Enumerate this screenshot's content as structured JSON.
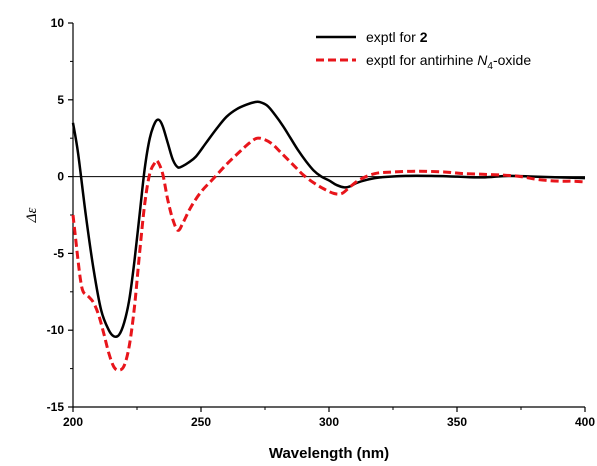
{
  "chart_data": {
    "type": "line",
    "title": "",
    "xlabel": "Wavelength (nm)",
    "ylabel": "Δε",
    "xlim": [
      200,
      400
    ],
    "ylim": [
      -15,
      10
    ],
    "xticks": [
      200,
      250,
      300,
      350,
      400
    ],
    "yticks": [
      -15,
      -10,
      -5,
      0,
      5,
      10
    ],
    "legend": "top-right",
    "zero_line": true,
    "series": [
      {
        "name_parts": [
          "exptl for ",
          "2"
        ],
        "color": "#000000",
        "style": "solid",
        "x": [
          200,
          202,
          205,
          208,
          211,
          214,
          216,
          218,
          220,
          222,
          224,
          226,
          228,
          230,
          232,
          233.5,
          235,
          237,
          239,
          241,
          243,
          245,
          248,
          252,
          256,
          260,
          264,
          268,
          271,
          273,
          276,
          279,
          282,
          285,
          288,
          291,
          294,
          297,
          300,
          303,
          306,
          308,
          311,
          315,
          320,
          330,
          340,
          350,
          360,
          370,
          380,
          390,
          400
        ],
        "y": [
          3.5,
          1.5,
          -2.5,
          -6.0,
          -8.7,
          -10.0,
          -10.4,
          -10.3,
          -9.5,
          -8.0,
          -5.5,
          -2.5,
          0.5,
          2.5,
          3.5,
          3.7,
          3.3,
          2.2,
          1.1,
          0.6,
          0.7,
          0.9,
          1.3,
          2.2,
          3.1,
          3.9,
          4.4,
          4.7,
          4.85,
          4.85,
          4.6,
          4.0,
          3.3,
          2.5,
          1.7,
          1.0,
          0.4,
          0.0,
          -0.25,
          -0.55,
          -0.7,
          -0.65,
          -0.4,
          -0.2,
          -0.05,
          0.05,
          0.05,
          0.0,
          -0.05,
          0.05,
          0.0,
          -0.05,
          -0.1
        ]
      },
      {
        "name_parts": [
          "exptl for antirhine ",
          "N",
          "4",
          "-oxide"
        ],
        "color": "#e8151b",
        "style": "dashed",
        "x": [
          200,
          201,
          202,
          203,
          204,
          206,
          208,
          210,
          212,
          214,
          216,
          218,
          220,
          222,
          224,
          226,
          228,
          230,
          232,
          233,
          235,
          237,
          239,
          241,
          243,
          246,
          250,
          255,
          260,
          265,
          269,
          272,
          275,
          278,
          281,
          284,
          287,
          290,
          294,
          298,
          302,
          305,
          308,
          312,
          318,
          325,
          335,
          345,
          352,
          360,
          368,
          375,
          382,
          390,
          395,
          400
        ],
        "y": [
          -2.5,
          -4.0,
          -5.5,
          -6.8,
          -7.5,
          -7.8,
          -8.2,
          -9.0,
          -10.2,
          -11.5,
          -12.4,
          -12.6,
          -12.3,
          -11.0,
          -8.5,
          -5.0,
          -1.8,
          0.2,
          0.9,
          1.0,
          0.2,
          -1.5,
          -2.8,
          -3.5,
          -3.0,
          -2.0,
          -1.0,
          -0.1,
          0.8,
          1.6,
          2.2,
          2.5,
          2.4,
          2.1,
          1.6,
          1.1,
          0.6,
          0.1,
          -0.4,
          -0.8,
          -1.1,
          -1.1,
          -0.7,
          -0.2,
          0.2,
          0.3,
          0.35,
          0.3,
          0.2,
          0.15,
          0.1,
          0.0,
          -0.2,
          -0.3,
          -0.3,
          -0.35
        ]
      }
    ]
  }
}
